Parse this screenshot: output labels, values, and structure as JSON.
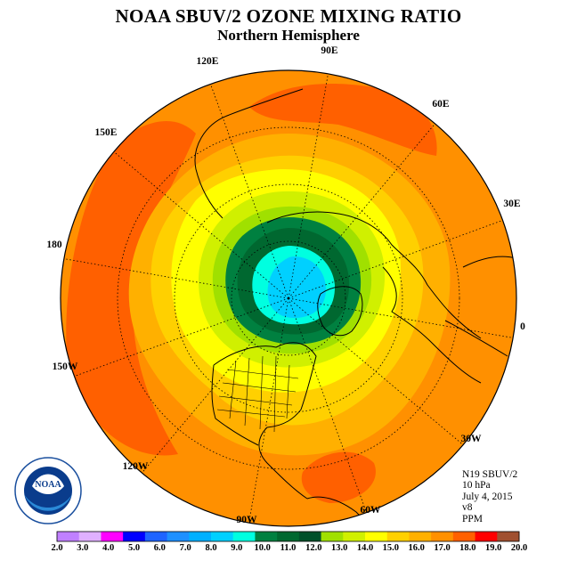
{
  "title": "NOAA SBUV/2 OZONE MIXING RATIO",
  "subtitle": "Northern Hemisphere",
  "longitude_labels": [
    "90E",
    "60E",
    "30E",
    "0",
    "30W",
    "60W",
    "90W",
    "120W",
    "150W",
    "180",
    "150E",
    "120E"
  ],
  "info": {
    "instrument": "N19 SBUV/2",
    "level": "10 hPa",
    "date": "July 4, 2015",
    "version": "v8",
    "units": "PPM"
  },
  "colorbar": {
    "colors": [
      "#c080ff",
      "#e0b0ff",
      "#ff00ff",
      "#0000ff",
      "#1e64ff",
      "#1e90ff",
      "#00b0ff",
      "#00d0ff",
      "#00ffe0",
      "#008040",
      "#006830",
      "#00502a",
      "#a0e000",
      "#d0f000",
      "#ffff00",
      "#ffd000",
      "#ffb000",
      "#ff9000",
      "#ff6000",
      "#ff0000",
      "#a05030"
    ],
    "tick_labels": [
      "2.0",
      "3.0",
      "4.0",
      "5.0",
      "6.0",
      "7.0",
      "8.0",
      "9.0",
      "10.0",
      "11.0",
      "12.0",
      "13.0",
      "14.0",
      "15.0",
      "16.0",
      "17.0",
      "18.0",
      "19.0",
      "20.0"
    ]
  },
  "field_levels": {
    "outer_background": "#ff9000",
    "rings": [
      {
        "min": 16.0,
        "color": "#ffb000"
      },
      {
        "min": 15.0,
        "color": "#ffd000"
      },
      {
        "min": 14.0,
        "color": "#ffff00"
      },
      {
        "min": 13.0,
        "color": "#d0f000"
      },
      {
        "min": 12.0,
        "color": "#a0e000"
      },
      {
        "min": 11.0,
        "color": "#008040"
      },
      {
        "min": 10.0,
        "color": "#006830"
      },
      {
        "min": 9.0,
        "color": "#00ffe0"
      },
      {
        "min": 8.0,
        "color": "#00d0ff"
      }
    ],
    "maxima_color": "#ff6000"
  },
  "logo": {
    "text": "NOAA",
    "ring_text": "NATIONAL OCEANIC AND ATMOSPHERIC ADMINISTRATION · U.S. DEPARTMENT OF COMMERCE"
  }
}
